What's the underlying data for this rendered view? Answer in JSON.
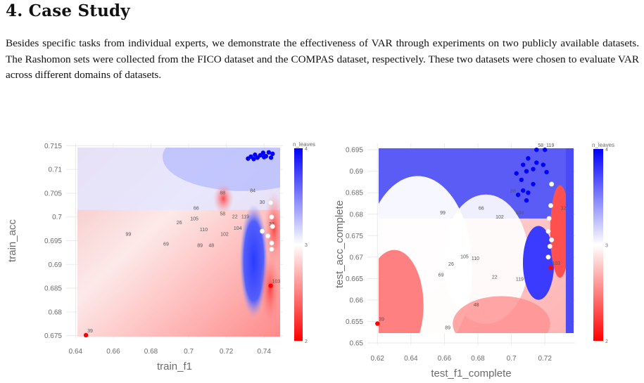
{
  "section": {
    "number": "4.",
    "title": "Case Study"
  },
  "paragraph": "Besides specific tasks from individual experts, we demonstrate the effectiveness of VAR through experiments on two publicly available datasets. The Rashomon sets were collected from the FICO dataset and the COMPAS dataset, respectively. These two datasets were chosen to evaluate VAR across different domains of datasets.",
  "colors": {
    "low": "#ff0000",
    "mid": "#ffffff",
    "high": "#0000ff",
    "text": "#6b6b6b"
  },
  "chart_data": [
    {
      "type": "scatter",
      "xlabel": "train_f1",
      "ylabel": "train_acc",
      "xlim": [
        0.635,
        0.75
      ],
      "ylim": [
        0.6745,
        0.7155
      ],
      "xticks": [
        "0.64",
        "0.66",
        "0.68",
        "0.7",
        "0.72",
        "0.74"
      ],
      "yticks": [
        "0.675",
        "0.68",
        "0.685",
        "0.69",
        "0.695",
        "0.7",
        "0.705",
        "0.71",
        "0.715"
      ],
      "colorbar": {
        "title": "n_leaves",
        "min": 2,
        "max": 4,
        "ticks": [
          "4",
          "3",
          "2"
        ]
      },
      "points": [
        {
          "x": 0.6455,
          "y": 0.6751,
          "label": "39",
          "c": 2
        },
        {
          "x": 0.7435,
          "y": 0.6855,
          "label": "103",
          "c": 2
        },
        {
          "x": 0.7365,
          "y": 0.7125,
          "label": "",
          "c": 4
        },
        {
          "x": 0.738,
          "y": 0.713,
          "label": "",
          "c": 4
        },
        {
          "x": 0.7395,
          "y": 0.7135,
          "label": "",
          "c": 4
        },
        {
          "x": 0.741,
          "y": 0.7128,
          "label": "",
          "c": 4
        },
        {
          "x": 0.7425,
          "y": 0.7136,
          "label": "",
          "c": 4
        },
        {
          "x": 0.7445,
          "y": 0.7133,
          "label": "",
          "c": 4
        },
        {
          "x": 0.7345,
          "y": 0.7122,
          "label": "",
          "c": 4
        },
        {
          "x": 0.733,
          "y": 0.7127,
          "label": "",
          "c": 4
        },
        {
          "x": 0.7315,
          "y": 0.7123,
          "label": "",
          "c": 4
        },
        {
          "x": 0.7352,
          "y": 0.7131,
          "label": "",
          "c": 4
        },
        {
          "x": 0.74,
          "y": 0.7126,
          "label": "",
          "c": 4
        },
        {
          "x": 0.7437,
          "y": 0.7125,
          "label": "",
          "c": 4
        },
        {
          "x": 0.739,
          "y": 0.697,
          "label": "",
          "c": 3
        },
        {
          "x": 0.742,
          "y": 0.696,
          "label": "",
          "c": 3
        },
        {
          "x": 0.744,
          "y": 0.6945,
          "label": "",
          "c": 3
        },
        {
          "x": 0.7445,
          "y": 0.698,
          "label": "",
          "c": 3
        },
        {
          "x": 0.7435,
          "y": 0.703,
          "label": "",
          "c": 3
        },
        {
          "x": 0.744,
          "y": 0.7,
          "label": "",
          "c": 3
        },
        {
          "x": 0.744,
          "y": 0.6932,
          "label": "",
          "c": 3
        }
      ],
      "labels": [
        {
          "x": 0.668,
          "y": 0.696,
          "text": "99"
        },
        {
          "x": 0.695,
          "y": 0.6985,
          "text": "26"
        },
        {
          "x": 0.688,
          "y": 0.694,
          "text": "69"
        },
        {
          "x": 0.704,
          "y": 0.7015,
          "text": "66"
        },
        {
          "x": 0.703,
          "y": 0.6993,
          "text": "105"
        },
        {
          "x": 0.708,
          "y": 0.697,
          "text": "110"
        },
        {
          "x": 0.706,
          "y": 0.6937,
          "text": "89"
        },
        {
          "x": 0.712,
          "y": 0.6937,
          "text": "48"
        },
        {
          "x": 0.718,
          "y": 0.7003,
          "text": "58"
        },
        {
          "x": 0.7245,
          "y": 0.6997,
          "text": "22"
        },
        {
          "x": 0.73,
          "y": 0.6997,
          "text": "119"
        },
        {
          "x": 0.719,
          "y": 0.696,
          "text": "102"
        },
        {
          "x": 0.726,
          "y": 0.6973,
          "text": "104"
        },
        {
          "x": 0.718,
          "y": 0.7048,
          "text": "88"
        },
        {
          "x": 0.734,
          "y": 0.7052,
          "text": "84"
        },
        {
          "x": 0.744,
          "y": 0.6982,
          "text": "32"
        },
        {
          "x": 0.739,
          "y": 0.7028,
          "text": "30"
        }
      ]
    },
    {
      "type": "scatter",
      "xlabel": "test_f1_complete",
      "ylabel": "test_acc_complete",
      "xlim": [
        0.614,
        0.738
      ],
      "ylim": [
        0.6495,
        0.6965
      ],
      "xticks": [
        "0.62",
        "0.64",
        "0.66",
        "0.68",
        "0.7",
        "0.72"
      ],
      "yticks": [
        "0.65",
        "0.655",
        "0.66",
        "0.665",
        "0.67",
        "0.675",
        "0.68",
        "0.685",
        "0.69",
        "0.695"
      ],
      "colorbar": {
        "title": "n_leaves",
        "min": 2,
        "max": 4,
        "ticks": [
          "4",
          "3",
          "2"
        ]
      },
      "points": [
        {
          "x": 0.62,
          "y": 0.6545,
          "label": "39",
          "c": 2
        },
        {
          "x": 0.7235,
          "y": 0.6675,
          "label": "103",
          "c": 2
        },
        {
          "x": 0.715,
          "y": 0.695,
          "label": "58",
          "c": 4
        },
        {
          "x": 0.72,
          "y": 0.695,
          "label": "119",
          "c": 4
        },
        {
          "x": 0.71,
          "y": 0.693,
          "label": "",
          "c": 4
        },
        {
          "x": 0.707,
          "y": 0.6915,
          "label": "",
          "c": 4
        },
        {
          "x": 0.703,
          "y": 0.6895,
          "label": "",
          "c": 4
        },
        {
          "x": 0.709,
          "y": 0.69,
          "label": "",
          "c": 4
        },
        {
          "x": 0.713,
          "y": 0.6905,
          "label": "",
          "c": 4
        },
        {
          "x": 0.715,
          "y": 0.692,
          "label": "",
          "c": 4
        },
        {
          "x": 0.719,
          "y": 0.6915,
          "label": "",
          "c": 4
        },
        {
          "x": 0.721,
          "y": 0.6898,
          "label": "",
          "c": 4
        },
        {
          "x": 0.706,
          "y": 0.688,
          "label": "",
          "c": 4
        },
        {
          "x": 0.707,
          "y": 0.6855,
          "label": "",
          "c": 4
        },
        {
          "x": 0.704,
          "y": 0.6845,
          "label": "",
          "c": 4
        },
        {
          "x": 0.71,
          "y": 0.685,
          "label": "",
          "c": 4
        },
        {
          "x": 0.709,
          "y": 0.6832,
          "label": "",
          "c": 4
        },
        {
          "x": 0.713,
          "y": 0.687,
          "label": "",
          "c": 4
        },
        {
          "x": 0.724,
          "y": 0.687,
          "label": "",
          "c": 3
        },
        {
          "x": 0.722,
          "y": 0.676,
          "label": "",
          "c": 3
        },
        {
          "x": 0.7225,
          "y": 0.679,
          "label": "",
          "c": 3
        },
        {
          "x": 0.724,
          "y": 0.674,
          "label": "",
          "c": 3
        },
        {
          "x": 0.7235,
          "y": 0.682,
          "label": "",
          "c": 3
        },
        {
          "x": 0.723,
          "y": 0.6725,
          "label": "",
          "c": 3
        },
        {
          "x": 0.722,
          "y": 0.67,
          "label": "",
          "c": 3
        }
      ],
      "labels": [
        {
          "x": 0.659,
          "y": 0.68,
          "text": "99"
        },
        {
          "x": 0.682,
          "y": 0.681,
          "text": "66"
        },
        {
          "x": 0.672,
          "y": 0.6697,
          "text": "105"
        },
        {
          "x": 0.6785,
          "y": 0.6693,
          "text": "110"
        },
        {
          "x": 0.664,
          "y": 0.668,
          "text": "26"
        },
        {
          "x": 0.658,
          "y": 0.6655,
          "text": "69"
        },
        {
          "x": 0.69,
          "y": 0.665,
          "text": "22"
        },
        {
          "x": 0.705,
          "y": 0.6645,
          "text": "119"
        },
        {
          "x": 0.693,
          "y": 0.679,
          "text": "102"
        },
        {
          "x": 0.701,
          "y": 0.685,
          "text": "88"
        },
        {
          "x": 0.705,
          "y": 0.68,
          "text": "104"
        },
        {
          "x": 0.679,
          "y": 0.6585,
          "text": "48"
        },
        {
          "x": 0.662,
          "y": 0.6532,
          "text": "89"
        },
        {
          "x": 0.731,
          "y": 0.681,
          "text": "32"
        }
      ]
    }
  ]
}
